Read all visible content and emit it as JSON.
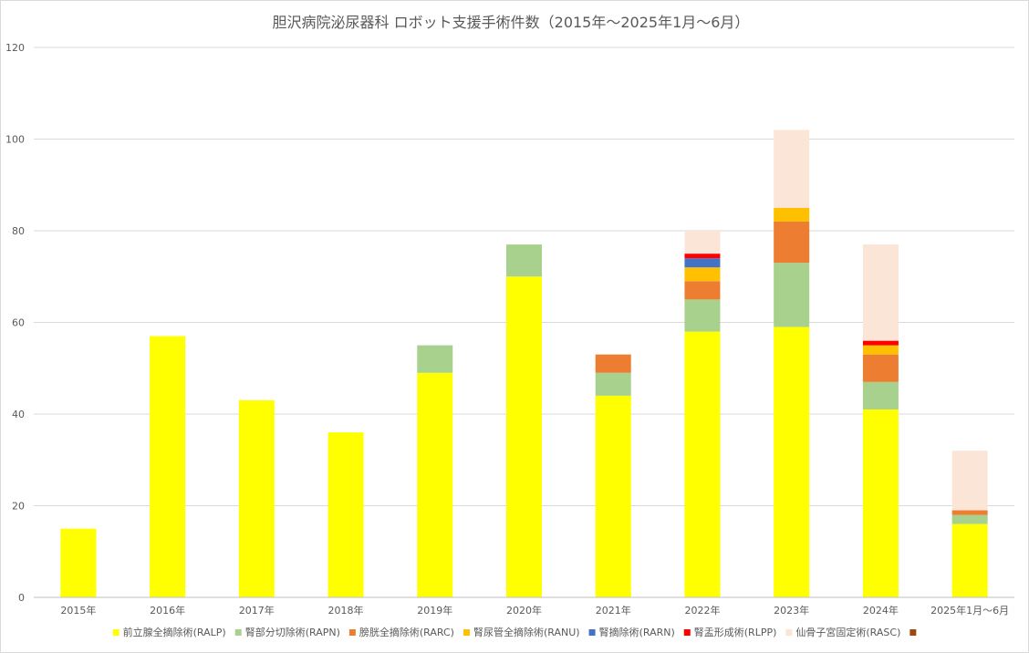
{
  "chart_data": {
    "type": "bar",
    "stacked": true,
    "title": "胆沢病院泌尿器科 ロボット支援手術件数（2015年～2025年1月～6月）",
    "ylim": [
      0,
      120
    ],
    "yticks": [
      "0",
      "20",
      "40",
      "60",
      "80",
      "100",
      "120"
    ],
    "grid": true,
    "legend_position": "bottom",
    "categories": [
      "2015年",
      "2016年",
      "2017年",
      "2018年",
      "2019年",
      "2020年",
      "2021年",
      "2022年",
      "2023年",
      "2024年",
      "2025年1月～6月"
    ],
    "series": [
      {
        "name": "前立腺全摘除術(RALP)",
        "color": "#ffff00",
        "values": [
          15,
          57,
          43,
          36,
          49,
          70,
          44,
          58,
          59,
          41,
          16
        ]
      },
      {
        "name": "腎部分切除術(RAPN)",
        "color": "#a9d18e",
        "values": [
          0,
          0,
          0,
          0,
          6,
          7,
          5,
          7,
          14,
          6,
          2
        ]
      },
      {
        "name": "膀胱全摘除術(RARC)",
        "color": "#ed7d31",
        "values": [
          0,
          0,
          0,
          0,
          0,
          0,
          4,
          4,
          9,
          6,
          1
        ]
      },
      {
        "name": "腎尿管全摘除術(RANU)",
        "color": "#ffc000",
        "values": [
          0,
          0,
          0,
          0,
          0,
          0,
          0,
          3,
          3,
          2,
          0
        ]
      },
      {
        "name": "腎摘除術(RARN)",
        "color": "#4472c4",
        "values": [
          0,
          0,
          0,
          0,
          0,
          0,
          0,
          2,
          0,
          0,
          0
        ]
      },
      {
        "name": "腎盂形成術(RLPP)",
        "color": "#ff0000",
        "values": [
          0,
          0,
          0,
          0,
          0,
          0,
          0,
          1,
          0,
          1,
          0
        ]
      },
      {
        "name": "仙骨子宮固定術(RASC)",
        "color": "#fbe5d6",
        "values": [
          0,
          0,
          0,
          0,
          0,
          0,
          0,
          5,
          17,
          21,
          13
        ]
      },
      {
        "name": "",
        "color": "#9e480e",
        "values": [
          0,
          0,
          0,
          0,
          0,
          0,
          0,
          0,
          0,
          0,
          0
        ]
      }
    ]
  }
}
